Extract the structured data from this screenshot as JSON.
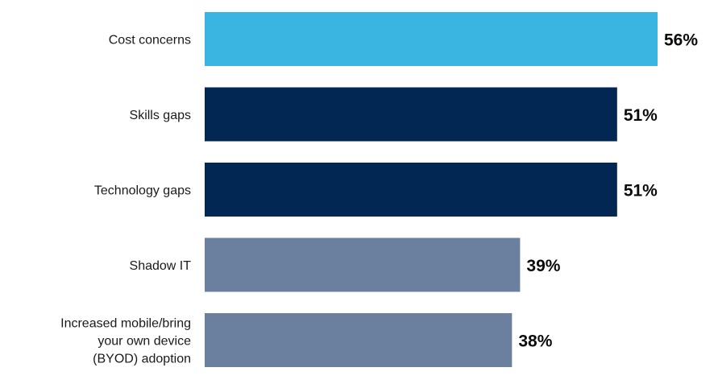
{
  "chart_data": {
    "type": "bar",
    "orientation": "horizontal",
    "title": "",
    "xlabel": "",
    "ylabel": "",
    "categories": [
      "Cost concerns",
      "Skills gaps",
      "Technology gaps",
      "Shadow IT",
      "Increased mobile/bring your own device (BYOD) adoption"
    ],
    "category_lines": [
      [
        "Cost concerns"
      ],
      [
        "Skills gaps"
      ],
      [
        "Technology gaps"
      ],
      [
        "Shadow IT"
      ],
      [
        "Increased mobile/bring",
        "your own device",
        "(BYOD) adoption"
      ]
    ],
    "values": [
      56,
      51,
      51,
      39,
      38
    ],
    "value_labels": [
      "56%",
      "51%",
      "51%",
      "39%",
      "38%"
    ],
    "bar_colors": [
      "#3ab4e0",
      "#022752",
      "#022752",
      "#6b809f",
      "#6b809f"
    ],
    "xlim": [
      0,
      56
    ],
    "grid": false,
    "legend": "none"
  }
}
